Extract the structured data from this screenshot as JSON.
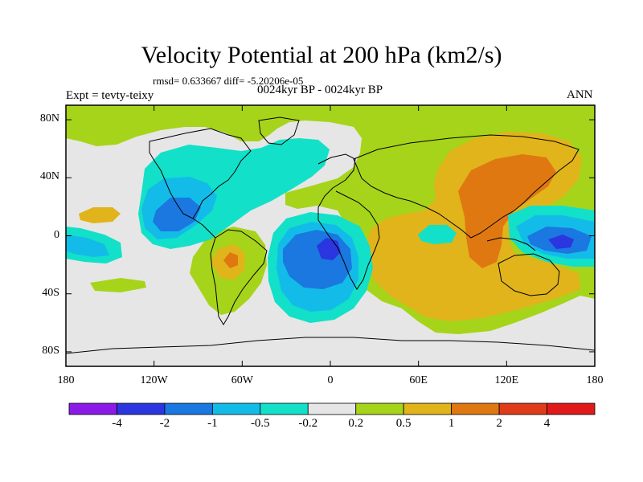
{
  "title": "Velocity Potential at 200 hPa (km2/s)",
  "stats": "rmsd= 0.633667 diff= -5.20206e-05",
  "expt": "Expt = tevty-teixy",
  "period": "0024kyr BP - 0024kyr BP",
  "season": "ANN",
  "map": {
    "lon_ticks": [
      "180",
      "120W",
      "60W",
      "0",
      "60E",
      "120E",
      "180"
    ],
    "lat_ticks": [
      "80N",
      "40N",
      "0",
      "40S",
      "80S"
    ],
    "lon_range": [
      -180,
      180
    ],
    "lat_range": [
      -90,
      90
    ]
  },
  "colorbar": {
    "labels": [
      "-4",
      "-2",
      "-1",
      "-0.5",
      "-0.2",
      "0.2",
      "0.5",
      "1",
      "2",
      "4"
    ],
    "colors": [
      "#8b1ae6",
      "#2b35e0",
      "#1a78e0",
      "#13bce8",
      "#13e0c8",
      "#e6e6e6",
      "#a6d41a",
      "#e0b41a",
      "#e07812",
      "#e03c1a",
      "#e01a1a"
    ]
  },
  "field_colors": {
    "neutral": "#e6e6e6",
    "pos_small": "#a6d41a",
    "pos_mid": "#e0b41a",
    "pos_large": "#e07812",
    "neg_small": "#13e0c8",
    "neg_mid": "#13bce8",
    "neg_large": "#1a78e0",
    "neg_xlarge": "#2b35e0"
  }
}
